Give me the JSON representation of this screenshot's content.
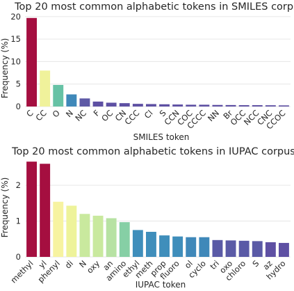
{
  "chart_data": [
    {
      "type": "bar",
      "title": "Top 20 most common alphabetic tokens in SMILES corpus",
      "xlabel": "SMILES token",
      "ylabel": "Frequency (%)",
      "categories": [
        "C",
        "CC",
        "O",
        "N",
        "NC",
        "F",
        "OC",
        "CN",
        "CCC",
        "Cl",
        "S",
        "CCN",
        "COC",
        "CCCC",
        "NN",
        "Br",
        "OCC",
        "NCC",
        "CNC",
        "CCOC"
      ],
      "values": [
        19.7,
        8.0,
        4.8,
        2.7,
        1.8,
        1.1,
        0.85,
        0.75,
        0.6,
        0.55,
        0.5,
        0.45,
        0.4,
        0.4,
        0.35,
        0.33,
        0.3,
        0.3,
        0.28,
        0.25
      ],
      "ylim": [
        0,
        20.6
      ],
      "yticks": [
        0,
        5,
        10,
        15,
        20
      ],
      "grid": true,
      "colors": [
        "#a50f40",
        "#f0f29b",
        "#66c2a5",
        "#3f88b9",
        "#5e5aa6",
        "#5e50a3",
        "#5e50a3",
        "#5e50a3",
        "#5e50a3",
        "#5e50a3",
        "#5e50a3",
        "#5e50a3",
        "#5e50a3",
        "#5e50a3",
        "#5e50a3",
        "#5e50a3",
        "#5e50a3",
        "#5e50a3",
        "#5e50a3",
        "#5e50a3"
      ]
    },
    {
      "type": "bar",
      "title": "Top 20 most common alphabetic tokens in IUPAC corpus",
      "xlabel": "IUPAC token",
      "ylabel": "Frequency (%)",
      "categories": [
        "methyl",
        "yl",
        "phenyl",
        "di",
        "N",
        "oxy",
        "an",
        "amino",
        "ethyl",
        "meth",
        "prop",
        "fluoro",
        "ol",
        "cyclo",
        "tri",
        "oxo",
        "chloro",
        "S",
        "az",
        "hydro"
      ],
      "values": [
        2.66,
        2.6,
        1.54,
        1.43,
        1.2,
        1.15,
        1.08,
        0.97,
        0.75,
        0.7,
        0.6,
        0.57,
        0.55,
        0.55,
        0.47,
        0.46,
        0.45,
        0.44,
        0.41,
        0.39
      ],
      "ylim": [
        0,
        2.78
      ],
      "yticks": [
        0,
        1,
        2
      ],
      "grid": true,
      "colors": [
        "#a50f40",
        "#a50f40",
        "#f7f3a0",
        "#eef39a",
        "#c9e99e",
        "#c9e99e",
        "#b7e2a3",
        "#86cfa5",
        "#3f8ebb",
        "#3f8ebb",
        "#3f8ebb",
        "#3f8ebb",
        "#3f88b9",
        "#3f88b9",
        "#5a5aa6",
        "#5a5aa6",
        "#5a5aa6",
        "#5a5aa6",
        "#5e50a3",
        "#5e50a3"
      ]
    }
  ]
}
